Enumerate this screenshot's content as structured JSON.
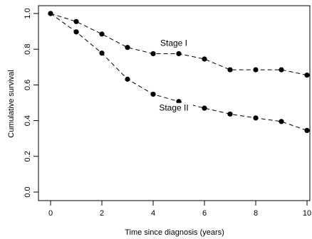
{
  "chart_data": {
    "type": "line",
    "xlabel": "Time since diagnosis (years)",
    "ylabel": "Cumulative survival",
    "xlim": [
      0,
      10
    ],
    "ylim": [
      0,
      1
    ],
    "x_ticks": [
      0,
      2,
      4,
      6,
      8,
      10
    ],
    "x_tick_labels": [
      "0",
      "2",
      "4",
      "6",
      "8",
      "10"
    ],
    "y_ticks": [
      0,
      0.2,
      0.4,
      0.6,
      0.8,
      1.0
    ],
    "y_tick_labels": [
      "0.0",
      "0.2",
      "0.4",
      "0.6",
      "0.8",
      "1.0"
    ],
    "grid": false,
    "line_style": "dashed",
    "marker": "filled-circle",
    "x": [
      0,
      1,
      2,
      3,
      4,
      5,
      6,
      7,
      8,
      9,
      10
    ],
    "series": [
      {
        "name": "Stage I",
        "values": [
          1.0,
          0.955,
          0.885,
          0.81,
          0.775,
          0.775,
          0.745,
          0.685,
          0.685,
          0.685,
          0.655
        ],
        "label_anchor_x": 5
      },
      {
        "name": "Stage II",
        "values": [
          1.0,
          0.897,
          0.778,
          0.632,
          0.548,
          0.507,
          0.47,
          0.437,
          0.415,
          0.395,
          0.345
        ],
        "label_anchor_x": 5
      }
    ]
  }
}
